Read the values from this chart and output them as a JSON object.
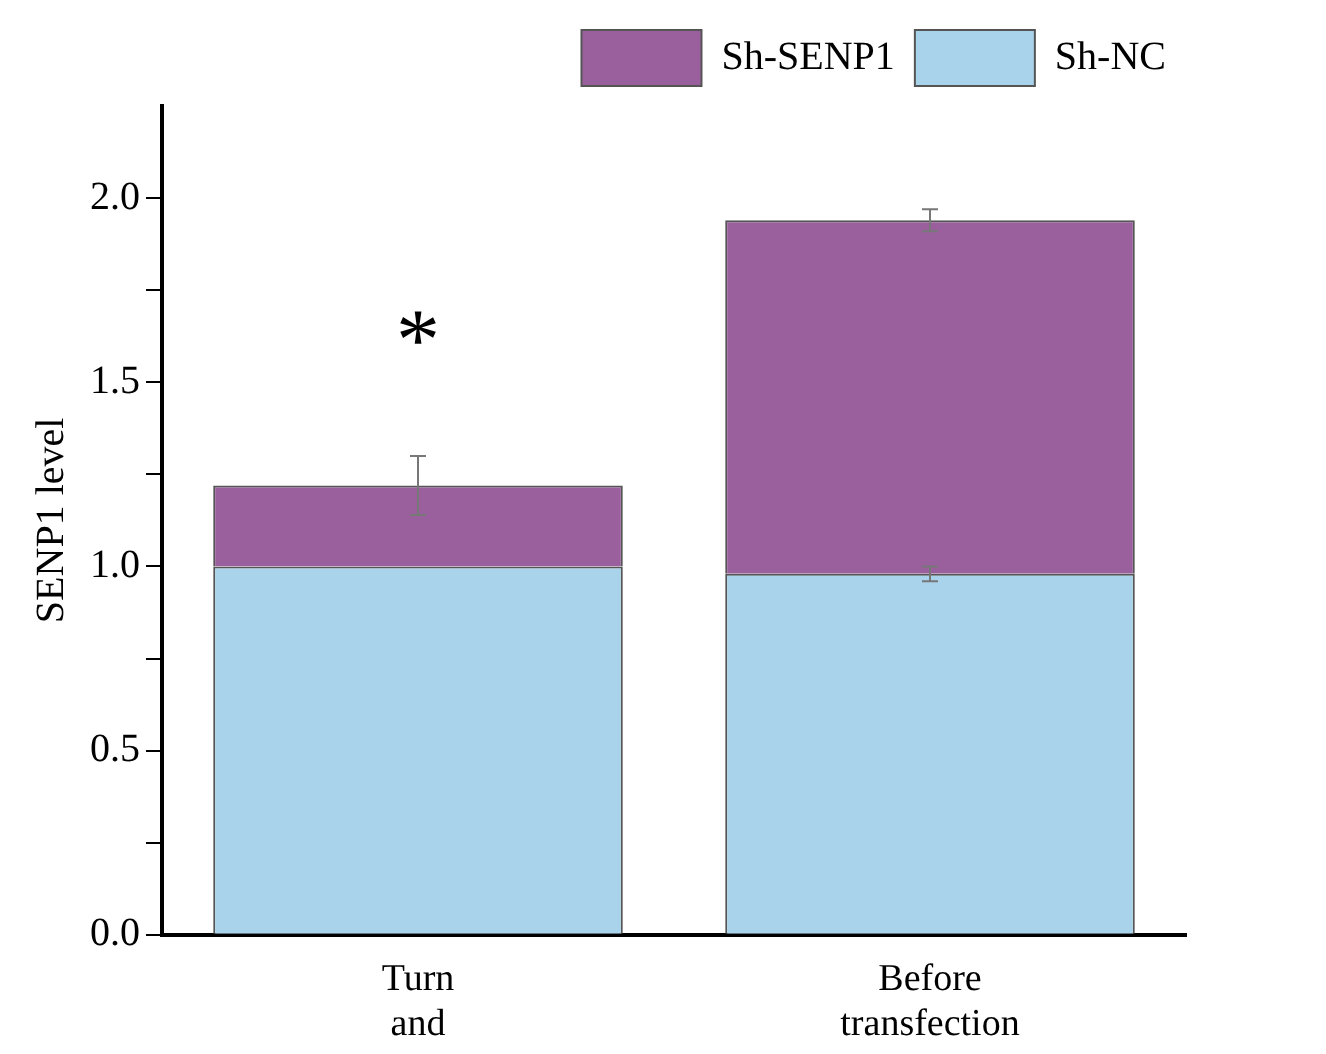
{
  "chart_data": {
    "type": "bar",
    "stacked": true,
    "ylabel": "SENP1 level",
    "categories": [
      "Turn and",
      "Before transfection"
    ],
    "series": [
      {
        "name": "Sh-NC",
        "color": "#a9d3ea",
        "values": [
          1.0,
          0.98
        ],
        "errors": [
          null,
          0.02
        ]
      },
      {
        "name": "Sh-SENP1",
        "color": "#9a609d",
        "values": [
          0.22,
          0.96
        ],
        "errors": [
          0.08,
          0.03
        ]
      }
    ],
    "ylim": [
      0,
      2.25
    ],
    "yticks": [
      {
        "value": 0,
        "label": "0.0"
      },
      {
        "value": 0.25,
        "label": null
      },
      {
        "value": 0.5,
        "label": "0.5"
      },
      {
        "value": 0.75,
        "label": null
      },
      {
        "value": 1,
        "label": "1.0"
      },
      {
        "value": 1.25,
        "label": null
      },
      {
        "value": 1.5,
        "label": "1.5"
      },
      {
        "value": 1.75,
        "label": null
      },
      {
        "value": 2,
        "label": "2.0"
      }
    ],
    "annotations": [
      "*"
    ],
    "legend": "top right",
    "grid": false
  }
}
